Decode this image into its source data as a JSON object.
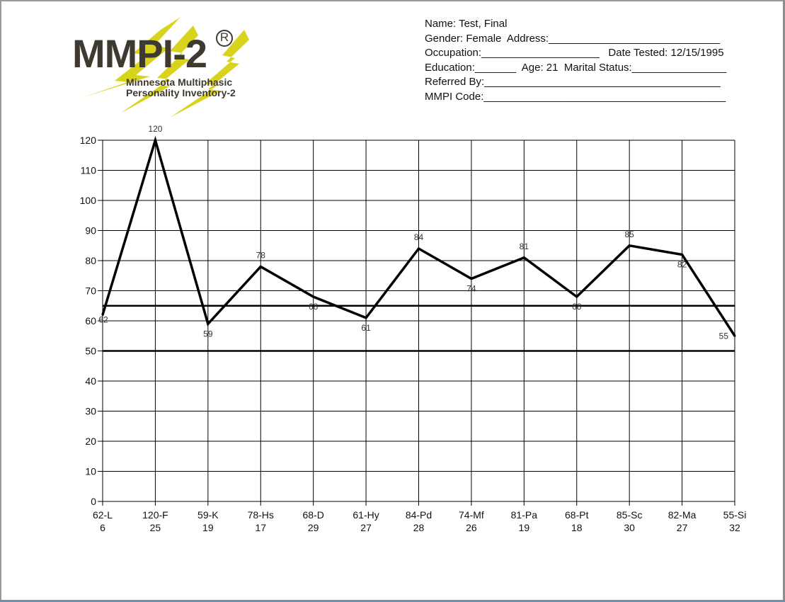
{
  "logo": {
    "title": "MMPI-2",
    "reg": "R",
    "sub1": "Minnesota Multiphasic",
    "sub2": "Personality Inventory-2",
    "bolt_color": "#d8d41e",
    "text_color": "#3f3a30"
  },
  "info_lines": [
    "Name: Test, Final",
    "Gender: Female  Address:_____________________________",
    "Occupation:____________________   Date Tested: 12/15/1995",
    "Education:_______  Age: 21  Marital Status:________________",
    "Referred By:________________________________________",
    "MMPI Code:_________________________________________"
  ],
  "chart_data": {
    "type": "line",
    "categories": [
      [
        "62-L",
        "6"
      ],
      [
        "120-F",
        "25"
      ],
      [
        "59-K",
        "19"
      ],
      [
        "78-Hs",
        "17"
      ],
      [
        "68-D",
        "29"
      ],
      [
        "61-Hy",
        "27"
      ],
      [
        "84-Pd",
        "28"
      ],
      [
        "74-Mf",
        "26"
      ],
      [
        "81-Pa",
        "19"
      ],
      [
        "68-Pt",
        "18"
      ],
      [
        "85-Sc",
        "30"
      ],
      [
        "82-Ma",
        "27"
      ],
      [
        "55-Si",
        "32"
      ]
    ],
    "values": [
      62,
      120,
      59,
      78,
      68,
      61,
      84,
      74,
      81,
      68,
      85,
      82,
      55
    ],
    "ylim": [
      0,
      120
    ],
    "yticks": [
      0,
      10,
      20,
      30,
      40,
      50,
      60,
      70,
      80,
      90,
      100,
      110,
      120
    ],
    "reference_lines": [
      50,
      65
    ],
    "grid": true,
    "line_color": "#000000"
  }
}
